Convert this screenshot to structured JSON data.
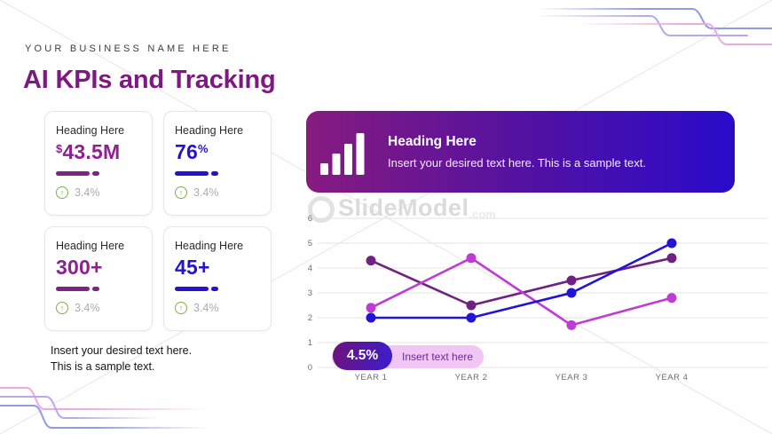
{
  "slide": {
    "business_name": "YOUR BUSINESS NAME HERE",
    "title": "AI KPIs and Tracking",
    "note_line1": "Insert your desired text here.",
    "note_line2": "This is a sample text."
  },
  "kpi_cards": [
    {
      "heading": "Heading Here",
      "value_prefix": "$",
      "value": "43.5M",
      "value_suffix": "",
      "delta": "3.4%",
      "color": "#8E2190"
    },
    {
      "heading": "Heading Here",
      "value_prefix": "",
      "value": "76",
      "value_suffix": "%",
      "delta": "3.4%",
      "color": "#2313D0"
    },
    {
      "heading": "Heading Here",
      "value_prefix": "",
      "value": "300+",
      "value_suffix": "",
      "delta": "3.4%",
      "color": "#8E2190"
    },
    {
      "heading": "Heading Here",
      "value_prefix": "",
      "value": "45+",
      "value_suffix": "",
      "delta": "3.4%",
      "color": "#2313D0"
    }
  ],
  "banner": {
    "icon": "bar-chart-icon",
    "heading": "Heading Here",
    "text": "Insert your desired text here. This is a sample text.",
    "gradient_from": "#871B80",
    "gradient_to": "#2A0ACA"
  },
  "badge": {
    "value": "4.5%",
    "label": "Insert text here"
  },
  "watermark": {
    "text": "SlideModel",
    "suffix": ".com"
  },
  "chart_data": {
    "type": "line",
    "categories": [
      "YEAR 1",
      "YEAR 2",
      "YEAR 3",
      "YEAR 4"
    ],
    "series": [
      {
        "name": "dark-purple-series",
        "color": "#702283",
        "values": [
          4.3,
          2.5,
          3.5,
          4.4
        ]
      },
      {
        "name": "magenta-series",
        "color": "#BE3BD4",
        "values": [
          2.4,
          4.4,
          1.7,
          2.8
        ]
      },
      {
        "name": "blue-series",
        "color": "#2213D6",
        "values": [
          2.0,
          2.0,
          3.0,
          5.0
        ]
      }
    ],
    "ylim": [
      0,
      6
    ],
    "yticks": [
      0,
      1,
      2,
      3,
      4,
      5,
      6
    ],
    "grid": true,
    "legend": "none",
    "tick_color": "#6E6E6E",
    "grid_color": "#E5E3E6"
  }
}
